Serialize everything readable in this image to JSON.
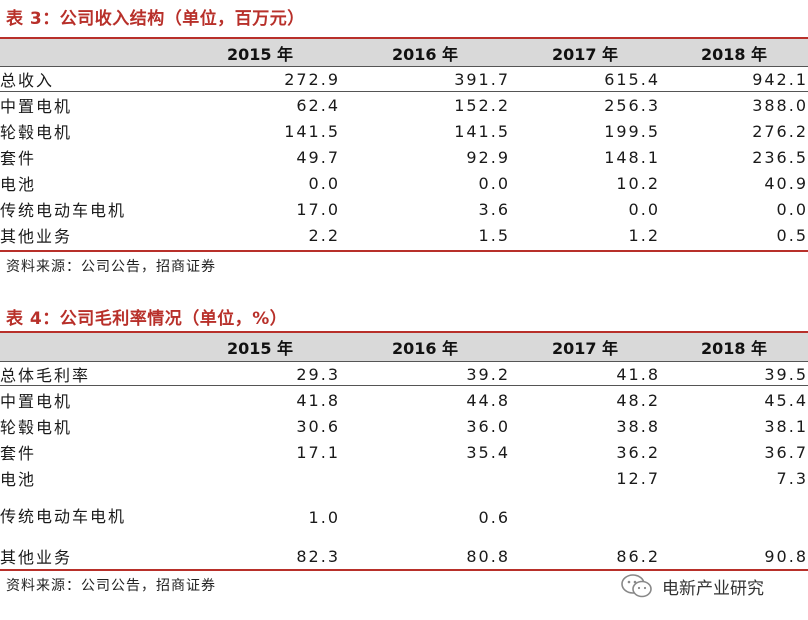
{
  "table3": {
    "caption": "表 3：公司收入结构（单位，百万元）",
    "headers": [
      "",
      "2015 年",
      "2016 年",
      "2017 年",
      "2018 年"
    ],
    "rows": [
      {
        "label": "总收入",
        "values": [
          "272.9",
          "391.7",
          "615.4",
          "942.1"
        ]
      },
      {
        "label": "中置电机",
        "values": [
          "62.4",
          "152.2",
          "256.3",
          "388.0"
        ]
      },
      {
        "label": "轮毂电机",
        "values": [
          "141.5",
          "141.5",
          "199.5",
          "276.2"
        ]
      },
      {
        "label": "套件",
        "values": [
          "49.7",
          "92.9",
          "148.1",
          "236.5"
        ]
      },
      {
        "label": "电池",
        "values": [
          "0.0",
          "0.0",
          "10.2",
          "40.9"
        ]
      },
      {
        "label": "传统电动车电机",
        "values": [
          "17.0",
          "3.6",
          "0.0",
          "0.0"
        ]
      },
      {
        "label": "其他业务",
        "values": [
          "2.2",
          "1.5",
          "1.2",
          "0.5"
        ]
      }
    ],
    "source": "资料来源：公司公告，招商证券"
  },
  "table4": {
    "caption": "表 4：公司毛利率情况（单位，%）",
    "headers": [
      "",
      "2015 年",
      "2016 年",
      "2017 年",
      "2018 年"
    ],
    "rows": [
      {
        "label": "总体毛利率",
        "values": [
          "29.3",
          "39.2",
          "41.8",
          "39.5"
        ]
      },
      {
        "label": "中置电机",
        "values": [
          "41.8",
          "44.8",
          "48.2",
          "45.4"
        ]
      },
      {
        "label": "轮毂电机",
        "values": [
          "30.6",
          "36.0",
          "38.8",
          "38.1"
        ]
      },
      {
        "label": "套件",
        "values": [
          "17.1",
          "35.4",
          "36.2",
          "36.7"
        ]
      },
      {
        "label": "电池",
        "values": [
          "",
          "",
          "12.7",
          "7.3"
        ]
      },
      {
        "label": "传统电动车电机",
        "values": [
          "1.0",
          "0.6",
          "",
          ""
        ]
      },
      {
        "label": "其他业务",
        "values": [
          "82.3",
          "80.8",
          "86.2",
          "90.8"
        ]
      }
    ],
    "source": "资料来源：公司公告，招商证券"
  },
  "watermark": {
    "text": "电新产业研究",
    "icon": "wechat-icon"
  },
  "colors": {
    "accent": "#b8302a",
    "header_band": "#d9d9d9"
  }
}
